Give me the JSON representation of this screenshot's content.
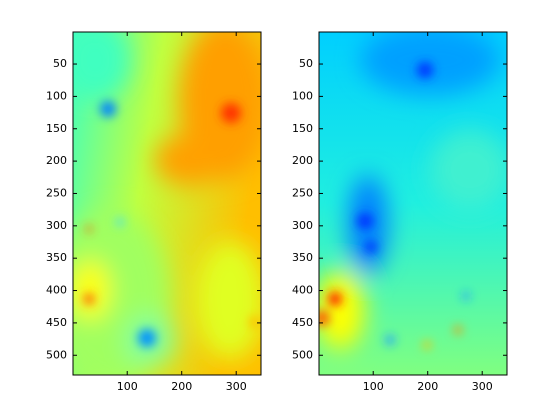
{
  "chart_data": [
    {
      "type": "heatmap",
      "xlim": [
        0.5,
        345.5
      ],
      "ylim": [
        0.5,
        530.5
      ],
      "xticks": [
        100,
        200,
        300
      ],
      "yticks": [
        50,
        100,
        150,
        200,
        250,
        300,
        350,
        400,
        450,
        500
      ],
      "y_reversed": true
    },
    {
      "type": "heatmap",
      "xlim": [
        0.5,
        345.5
      ],
      "ylim": [
        0.5,
        530.5
      ],
      "xticks": [
        100,
        200,
        300
      ],
      "yticks": [
        50,
        100,
        150,
        200,
        250,
        300,
        350,
        400,
        450,
        500
      ],
      "y_reversed": true
    }
  ]
}
